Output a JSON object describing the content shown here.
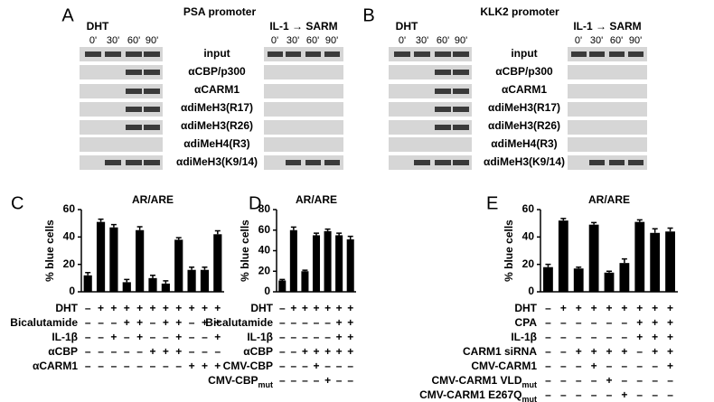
{
  "blots": [
    {
      "panel": "A",
      "title": "PSA promoter",
      "groups": [
        "DHT",
        "IL-1 → SARM"
      ],
      "lanes": [
        "0'",
        "30'",
        "60'",
        "90'"
      ],
      "rows": [
        "input",
        "αCBP/p300",
        "αCARM1",
        "αdiMeH3(R17)",
        "αdiMeH3(R26)",
        "αdiMeH4(R3)",
        "αdiMeH3(K9/14)"
      ]
    },
    {
      "panel": "B",
      "title": "KLK2 promoter",
      "groups": [
        "DHT",
        "IL-1 → SARM"
      ],
      "lanes": [
        "0'",
        "30'",
        "60'",
        "90'"
      ],
      "rows": [
        "input",
        "αCBP/p300",
        "αCARM1",
        "αdiMeH3(R17)",
        "αdiMeH3(R26)",
        "αdiMeH4(R3)",
        "αdiMeH3(K9/14)"
      ]
    }
  ],
  "chart_data": [
    {
      "type": "bar",
      "panel": "C",
      "title": "AR/ARE",
      "ylabel": "% blue cells",
      "color": "#000000",
      "ylim": [
        0,
        60
      ],
      "yticks": [
        0,
        20,
        40,
        60
      ],
      "values": [
        12,
        51,
        47,
        7,
        45,
        10,
        6,
        38,
        16,
        16,
        42
      ],
      "errors": [
        2,
        2,
        2,
        2,
        2.5,
        2,
        2,
        1.5,
        2,
        2,
        2.5
      ],
      "conditions": [
        {
          "label": "DHT",
          "signs": [
            "–",
            "+",
            "+",
            "+",
            "+",
            "+",
            "+",
            "+",
            "+",
            "+",
            "+"
          ]
        },
        {
          "label": "Bicalutamide",
          "signs": [
            "–",
            "–",
            "–",
            "+",
            "+",
            "–",
            "+",
            "+",
            "–",
            "+",
            "+"
          ]
        },
        {
          "label": "IL-1β",
          "signs": [
            "–",
            "–",
            "+",
            "–",
            "+",
            "–",
            "–",
            "+",
            "–",
            "–",
            "+"
          ]
        },
        {
          "label": "αCBP",
          "signs": [
            "–",
            "–",
            "–",
            "–",
            "–",
            "+",
            "+",
            "+",
            "–",
            "–",
            "–"
          ]
        },
        {
          "label": "αCARM1",
          "signs": [
            "–",
            "–",
            "–",
            "–",
            "–",
            "–",
            "–",
            "–",
            "+",
            "+",
            "+"
          ]
        }
      ]
    },
    {
      "type": "bar",
      "panel": "D",
      "title": "AR/ARE",
      "ylabel": "% blue cells",
      "color": "#000000",
      "ylim": [
        0,
        80
      ],
      "yticks": [
        0,
        20,
        40,
        60,
        80
      ],
      "values": [
        11,
        60,
        20,
        55,
        59,
        55,
        51
      ],
      "errors": [
        1,
        3,
        1,
        2,
        2,
        2,
        3
      ],
      "conditions": [
        {
          "label": "DHT",
          "signs": [
            "–",
            "+",
            "+",
            "+",
            "+",
            "+",
            "+"
          ]
        },
        {
          "label": "Bicalutamide",
          "signs": [
            "–",
            "–",
            "–",
            "–",
            "–",
            "+",
            "+"
          ]
        },
        {
          "label": "IL-1β",
          "signs": [
            "–",
            "–",
            "–",
            "–",
            "–",
            "+",
            "+"
          ]
        },
        {
          "label": "αCBP",
          "signs": [
            "–",
            "–",
            "+",
            "+",
            "+",
            "+",
            "+"
          ]
        },
        {
          "label": "CMV-CBP",
          "signs": [
            "–",
            "–",
            "–",
            "+",
            "–",
            "–",
            "–"
          ]
        },
        {
          "label": "CMV-CBP",
          "sub": "mut",
          "signs": [
            "–",
            "–",
            "–",
            "–",
            "+",
            "–",
            "–"
          ]
        }
      ]
    },
    {
      "type": "bar",
      "panel": "E",
      "title": "AR/ARE",
      "ylabel": "% blue cells",
      "color": "#000000",
      "ylim": [
        0,
        60
      ],
      "yticks": [
        0,
        20,
        40,
        60
      ],
      "values": [
        18,
        52,
        17,
        49,
        14,
        21,
        51,
        43,
        44
      ],
      "errors": [
        2,
        1.5,
        1,
        1.5,
        1,
        3,
        1.5,
        3,
        2.5
      ],
      "conditions": [
        {
          "label": "DHT",
          "signs": [
            "–",
            "+",
            "+",
            "+",
            "+",
            "+",
            "+",
            "+",
            "+"
          ]
        },
        {
          "label": "CPA",
          "signs": [
            "–",
            "–",
            "–",
            "–",
            "–",
            "–",
            "+",
            "+",
            "+"
          ]
        },
        {
          "label": "IL-1β",
          "signs": [
            "–",
            "–",
            "–",
            "–",
            "–",
            "–",
            "+",
            "+",
            "+"
          ]
        },
        {
          "label": "CARM1 siRNA",
          "signs": [
            "–",
            "–",
            "+",
            "+",
            "+",
            "+",
            "–",
            "+",
            "+"
          ]
        },
        {
          "label": "CMV-CARM1",
          "signs": [
            "–",
            "–",
            "–",
            "+",
            "–",
            "–",
            "–",
            "–",
            "+"
          ]
        },
        {
          "label": "CMV-CARM1 VLD",
          "sub": "mut",
          "signs": [
            "–",
            "–",
            "–",
            "–",
            "+",
            "–",
            "–",
            "–",
            "–"
          ]
        },
        {
          "label": "CMV-CARM1 E267Q",
          "sub": "mut",
          "signs": [
            "–",
            "–",
            "–",
            "–",
            "–",
            "+",
            "–",
            "–",
            "–"
          ]
        }
      ]
    }
  ]
}
